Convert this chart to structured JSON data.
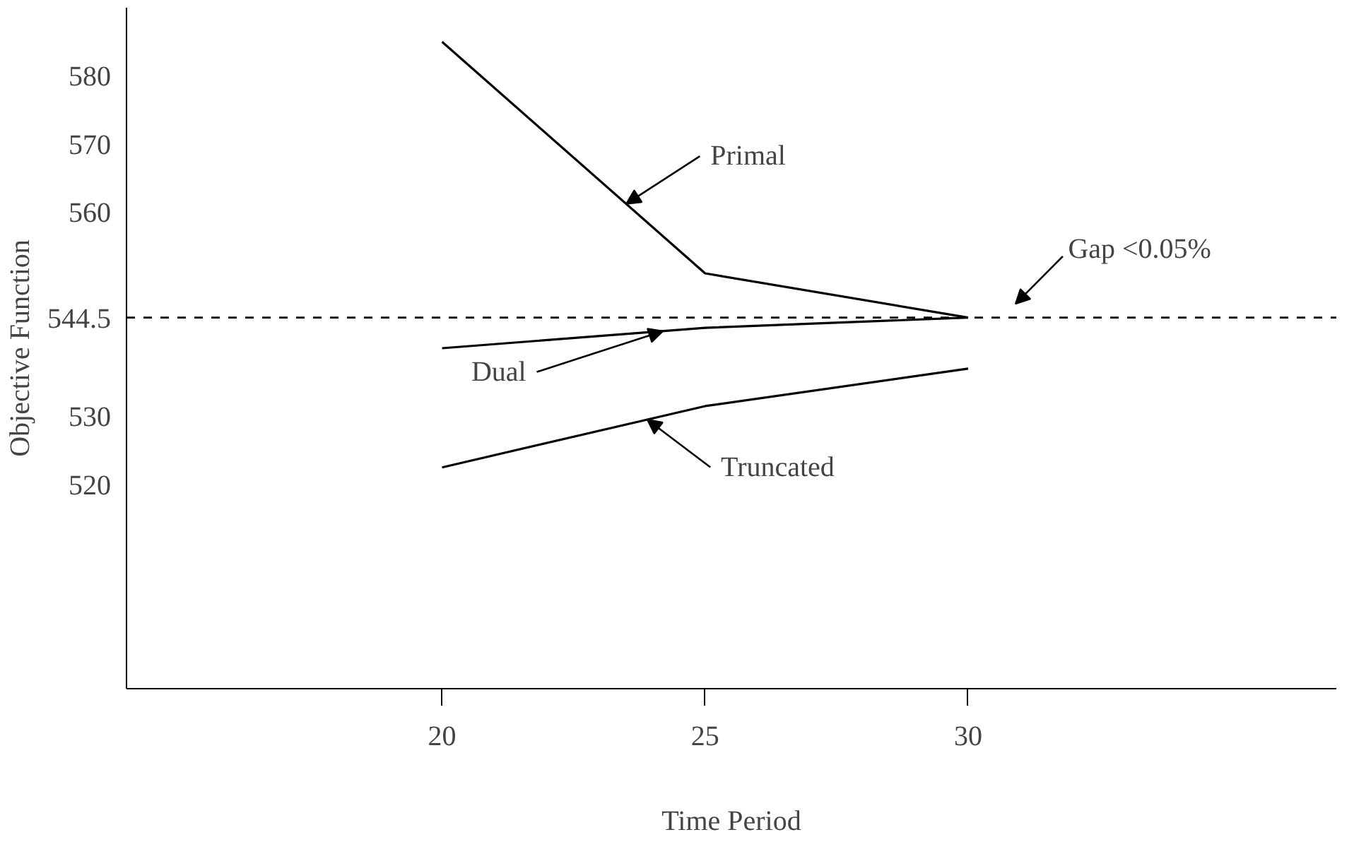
{
  "chart_data": {
    "type": "line",
    "xlabel": "Time Period",
    "ylabel": "Objective Function",
    "x": [
      20,
      25,
      30
    ],
    "series": [
      {
        "name": "Primal",
        "color": "#000000",
        "values": [
          585,
          551,
          544.5
        ]
      },
      {
        "name": "Dual",
        "color": "#000000",
        "values": [
          540,
          543,
          544.5
        ]
      },
      {
        "name": "Truncated",
        "color": "#000000",
        "values": [
          522.5,
          531.5,
          537
        ]
      }
    ],
    "xlim": [
      14,
      37
    ],
    "xticks": [
      20,
      25,
      30
    ],
    "ylim": [
      490,
      590
    ],
    "yticks": [
      520,
      530,
      544.5,
      560,
      570,
      580
    ],
    "ref_lines": [
      {
        "axis": "y",
        "value": 544.5,
        "label": null,
        "line_style": "dashed",
        "color": "#000000"
      }
    ],
    "annotations": [
      "Gap <0.05%"
    ],
    "grid": false,
    "legend": false,
    "marker": "none",
    "line_style": "solid"
  }
}
